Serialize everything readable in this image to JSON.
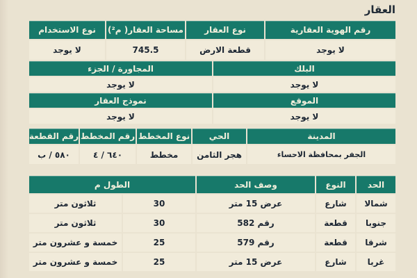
{
  "title": "العقار",
  "colors": {
    "accent": "#17796a",
    "page_bg": "#eae3d1",
    "cell_bg": "#f1ebda",
    "header_text": "#f2efdc",
    "text": "#1c2633"
  },
  "property": {
    "id_header": "رقم الهوية العقارية",
    "id_value": "لا يوجد",
    "type_header": "نوع العقار",
    "type_value": "قطعة الارض",
    "area_header": "مساحة العقار( م²)",
    "area_value": "745.5",
    "usage_header": "نوع الاستخدام",
    "usage_value": "لا يوجد",
    "block_header": "البلك",
    "block_value": "لا يوجد",
    "adjacent_header": "المجاورة / الجزء",
    "adjacent_value": "لا يوجد",
    "site_header": "الموقع",
    "site_value": "لا يوجد",
    "model_header": "نموذج العقار",
    "model_value": "لا يوجد"
  },
  "location": {
    "headers": [
      "المدينة",
      "الحي",
      "نوع المخطط",
      "رقم المخطط",
      "رقم القطعة"
    ],
    "values": [
      "الجفر بمحافظة الاحساء",
      "هجر الثامن",
      "مخطط",
      "٦٤٠ / ٤",
      "٥٨٠ / ب"
    ]
  },
  "boundaries": {
    "headers": {
      "side": "الحد",
      "type": "النوع",
      "description": "وصف الحد",
      "length": "الطول م"
    },
    "rows": [
      {
        "side": "شمالا",
        "type": "شارع",
        "description": "عرض 15 متر",
        "length": "30",
        "length_words": "ثلاثون متر"
      },
      {
        "side": "جنوبا",
        "type": "قطعة",
        "description": "رقم 582",
        "length": "30",
        "length_words": "ثلاثون متر"
      },
      {
        "side": "شرقا",
        "type": "قطعة",
        "description": "رقم 579",
        "length": "25",
        "length_words": "خمسة و عشرون متر"
      },
      {
        "side": "غربا",
        "type": "شارع",
        "description": "عرض 15 متر",
        "length": "25",
        "length_words": "خمسة و عشرون متر"
      }
    ]
  }
}
